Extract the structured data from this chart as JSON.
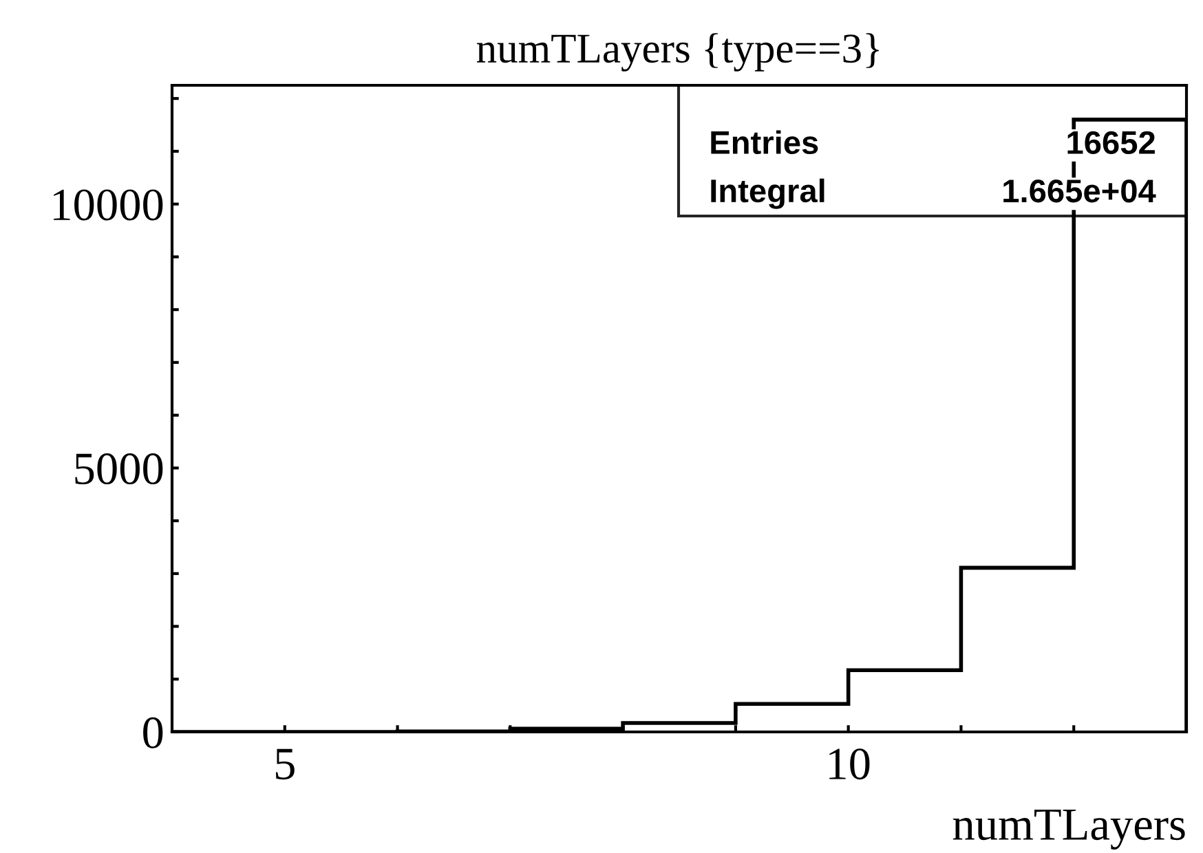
{
  "chart_data": {
    "type": "histogram",
    "title": "numTLayers {type==3}",
    "xlabel": "numTLayers",
    "bins": [
      4,
      5,
      6,
      7,
      8,
      9,
      10,
      11,
      12,
      13
    ],
    "values": [
      0,
      0,
      10,
      60,
      170,
      530,
      1170,
      3110,
      11600
    ],
    "color": "#000000",
    "xlim": [
      4,
      13
    ],
    "ylim": [
      0,
      12250
    ],
    "xticks": [
      5,
      {
        "value": 6,
        "label": null
      },
      {
        "value": 7,
        "label": null
      },
      {
        "value": 8,
        "label": null
      },
      {
        "value": 9,
        "label": null
      },
      10,
      {
        "value": 11,
        "label": null
      },
      {
        "value": 12,
        "label": null
      }
    ],
    "yticks": [
      0,
      {
        "value": 1000,
        "label": null
      },
      {
        "value": 2000,
        "label": null
      },
      {
        "value": 3000,
        "label": null
      },
      {
        "value": 4000,
        "label": null
      },
      5000,
      {
        "value": 6000,
        "label": null
      },
      {
        "value": 7000,
        "label": null
      },
      {
        "value": 8000,
        "label": null
      },
      {
        "value": 9000,
        "label": null
      },
      10000,
      {
        "value": 11000,
        "label": null
      },
      {
        "value": 12000,
        "label": null
      }
    ],
    "annotations": [
      "Entries",
      "16652",
      "Integral",
      "1.665e+04"
    ],
    "grid": false,
    "legend": false
  }
}
